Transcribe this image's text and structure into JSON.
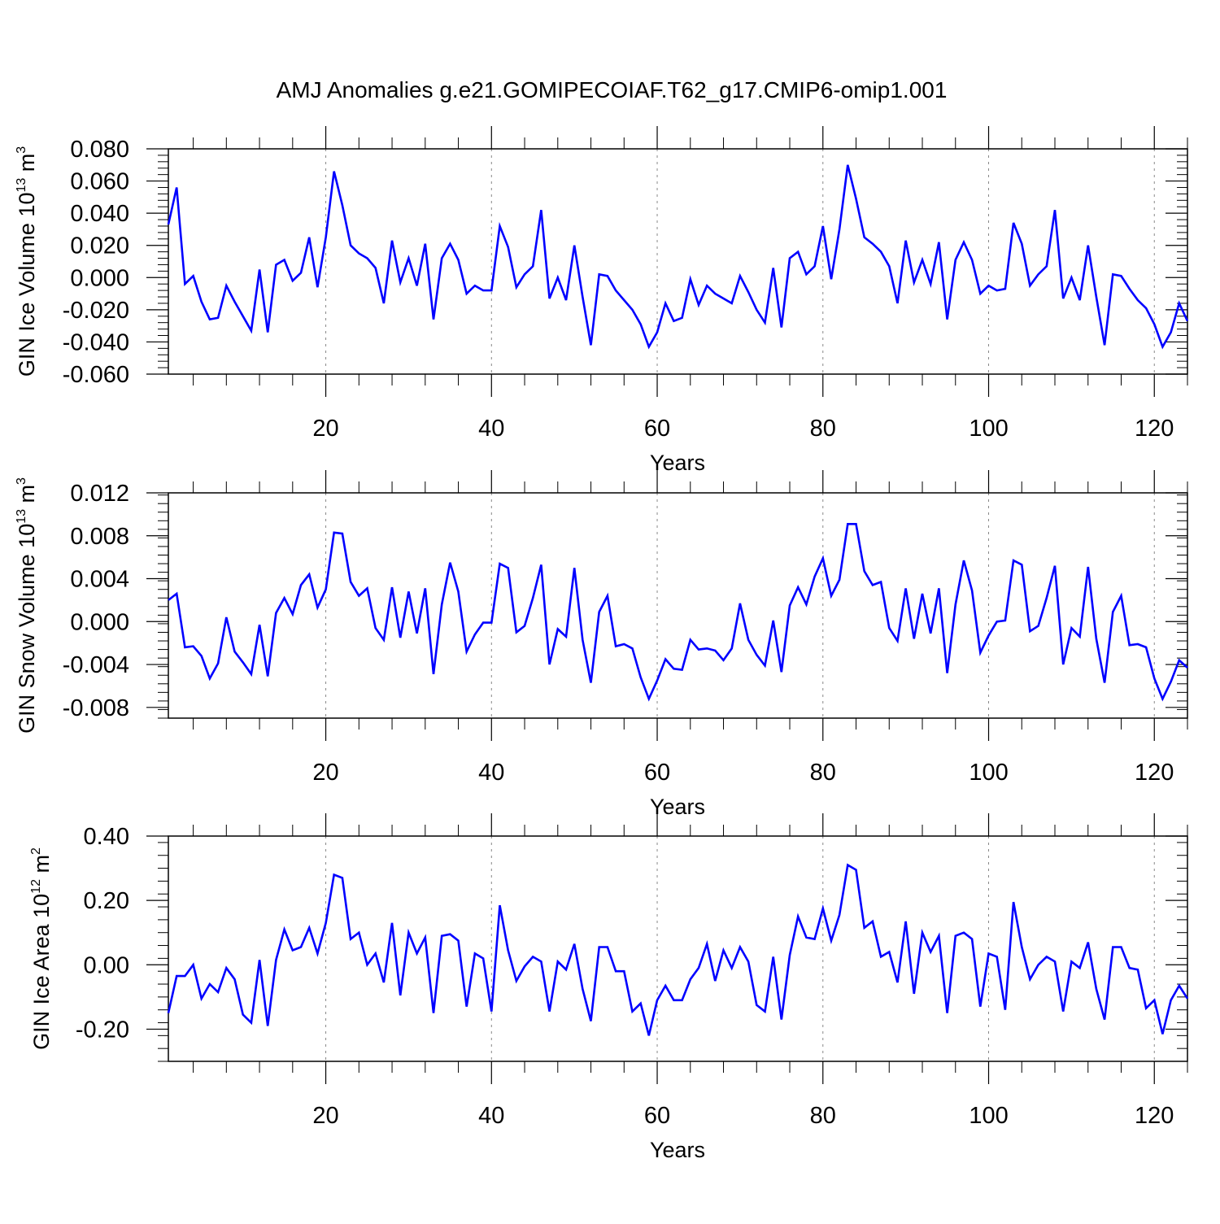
{
  "title": "AMJ Anomalies g.e21.GOMIPECOIAF.T62_g17.CMIP6-omip1.001",
  "colors": {
    "line": "#0000ff",
    "axis": "#000000",
    "grid": "#888888"
  },
  "chart_data": [
    {
      "type": "line",
      "ylabel": {
        "main": "GIN Ice Volume 10",
        "sup1": "13",
        "unit": " m",
        "sup2": "3"
      },
      "xlabel": "Years",
      "xlim": [
        1,
        124
      ],
      "ylim": [
        -0.06,
        0.08
      ],
      "xticks": [
        20,
        40,
        60,
        80,
        100,
        120
      ],
      "xtick_labels": [
        "20",
        "40",
        "60",
        "80",
        "100",
        "120"
      ],
      "yticks": [
        -0.06,
        -0.04,
        -0.02,
        0.0,
        0.02,
        0.04,
        0.06,
        0.08
      ],
      "ytick_labels": [
        "-0.060",
        "-0.040",
        "-0.020",
        "0.000",
        "0.020",
        "0.040",
        "0.060",
        "0.080"
      ],
      "series": [
        {
          "name": "GIN Ice Volume",
          "values": [
            0.033,
            0.056,
            -0.004,
            0.001,
            -0.015,
            -0.026,
            -0.025,
            -0.005,
            -0.015,
            -0.024,
            -0.033,
            0.005,
            -0.034,
            0.008,
            0.011,
            -0.002,
            0.003,
            0.025,
            -0.006,
            0.025,
            0.066,
            0.045,
            0.02,
            0.015,
            0.012,
            0.006,
            -0.016,
            0.023,
            -0.003,
            0.012,
            -0.005,
            0.021,
            -0.026,
            0.012,
            0.021,
            0.011,
            -0.01,
            -0.005,
            -0.008,
            -0.008,
            0.032,
            0.019,
            -0.006,
            0.002,
            0.007,
            0.042,
            -0.013,
            0.0,
            -0.014,
            0.02,
            -0.012,
            -0.042,
            0.002,
            0.001,
            -0.008,
            -0.014,
            -0.02,
            -0.029,
            -0.043,
            -0.034,
            -0.016,
            -0.027,
            -0.025,
            -0.001,
            -0.017,
            -0.005,
            -0.01,
            -0.013,
            -0.016,
            0.001,
            -0.009,
            -0.02,
            -0.028,
            0.006,
            -0.031,
            0.012,
            0.016,
            0.002,
            0.007,
            0.032,
            -0.001,
            0.03,
            0.07,
            0.049,
            0.025,
            0.021,
            0.016,
            0.007,
            -0.016,
            0.023,
            -0.003,
            0.011,
            -0.004,
            0.022,
            -0.026,
            0.011,
            0.022,
            0.011,
            -0.01,
            -0.005,
            -0.008,
            -0.007,
            0.034,
            0.021,
            -0.005,
            0.002,
            0.007,
            0.042,
            -0.013,
            0.0,
            -0.014,
            0.02,
            -0.012,
            -0.042,
            0.002,
            0.001,
            -0.007,
            -0.014,
            -0.019,
            -0.029,
            -0.043,
            -0.034,
            -0.016,
            -0.027
          ]
        }
      ]
    },
    {
      "type": "line",
      "ylabel": {
        "main": "GIN Snow Volume 10",
        "sup1": "13",
        "unit": " m",
        "sup2": "3"
      },
      "xlabel": "Years",
      "xlim": [
        1,
        124
      ],
      "ylim": [
        -0.009,
        0.012
      ],
      "xticks": [
        20,
        40,
        60,
        80,
        100,
        120
      ],
      "xtick_labels": [
        "20",
        "40",
        "60",
        "80",
        "100",
        "120"
      ],
      "yticks": [
        -0.008,
        -0.004,
        0.0,
        0.004,
        0.008,
        0.012
      ],
      "ytick_labels": [
        "-0.008",
        "-0.004",
        "0.000",
        "0.004",
        "0.008",
        "0.012"
      ],
      "series": [
        {
          "name": "GIN Snow Volume",
          "values": [
            0.002,
            0.0026,
            -0.0024,
            -0.0023,
            -0.0032,
            -0.0053,
            -0.0039,
            0.0004,
            -0.0028,
            -0.0038,
            -0.0049,
            -0.0003,
            -0.0051,
            0.0008,
            0.0022,
            0.0007,
            0.0034,
            0.0044,
            0.0013,
            0.003,
            0.0083,
            0.0082,
            0.0037,
            0.0024,
            0.0031,
            -0.0006,
            -0.0017,
            0.0032,
            -0.0015,
            0.0028,
            -0.0011,
            0.0031,
            -0.0049,
            0.0016,
            0.0055,
            0.0028,
            -0.0028,
            -0.0012,
            -0.0001,
            -0.0001,
            0.0054,
            0.005,
            -0.001,
            -0.0004,
            0.0022,
            0.0053,
            -0.004,
            -0.0007,
            -0.0014,
            0.005,
            -0.0017,
            -0.0057,
            0.0009,
            0.0024,
            -0.0023,
            -0.0021,
            -0.0025,
            -0.0052,
            -0.0072,
            -0.0055,
            -0.0035,
            -0.0044,
            -0.0045,
            -0.0017,
            -0.0026,
            -0.0025,
            -0.0027,
            -0.0036,
            -0.0025,
            0.0017,
            -0.0017,
            -0.0031,
            -0.0041,
            0.0001,
            -0.0047,
            0.0015,
            0.0032,
            0.0016,
            0.0042,
            0.0059,
            0.0024,
            0.0039,
            0.0091,
            0.0091,
            0.0047,
            0.0034,
            0.0037,
            -0.0006,
            -0.0018,
            0.0031,
            -0.0016,
            0.0026,
            -0.0011,
            0.0031,
            -0.0048,
            0.0016,
            0.0057,
            0.0029,
            -0.0029,
            -0.0013,
            0.0,
            0.0001,
            0.0057,
            0.0053,
            -0.0009,
            -0.0004,
            0.0022,
            0.0052,
            -0.004,
            -0.0006,
            -0.0014,
            0.0051,
            -0.0016,
            -0.0057,
            0.0009,
            0.0024,
            -0.0022,
            -0.0021,
            -0.0024,
            -0.0053,
            -0.0072,
            -0.0056,
            -0.0036,
            -0.0043
          ]
        }
      ]
    },
    {
      "type": "line",
      "ylabel": {
        "main": "GIN Ice Area 10",
        "sup1": "12",
        "unit": " m",
        "sup2": "2"
      },
      "xlabel": "Years",
      "xlim": [
        1,
        124
      ],
      "ylim": [
        -0.3,
        0.4
      ],
      "xticks": [
        20,
        40,
        60,
        80,
        100,
        120
      ],
      "xtick_labels": [
        "20",
        "40",
        "60",
        "80",
        "100",
        "120"
      ],
      "yticks": [
        -0.2,
        0.0,
        0.2,
        0.4
      ],
      "ytick_labels": [
        "-0.20",
        "0.00",
        "0.20",
        "0.40"
      ],
      "series": [
        {
          "name": "GIN Ice Area",
          "values": [
            -0.15,
            -0.035,
            -0.035,
            0.0,
            -0.105,
            -0.06,
            -0.085,
            -0.01,
            -0.045,
            -0.155,
            -0.18,
            0.015,
            -0.19,
            0.015,
            0.11,
            0.045,
            0.055,
            0.115,
            0.035,
            0.13,
            0.28,
            0.27,
            0.08,
            0.1,
            0.0,
            0.035,
            -0.055,
            0.13,
            -0.095,
            0.1,
            0.035,
            0.085,
            -0.15,
            0.09,
            0.095,
            0.075,
            -0.13,
            0.035,
            0.02,
            -0.145,
            0.185,
            0.045,
            -0.05,
            -0.005,
            0.025,
            0.01,
            -0.145,
            0.01,
            -0.015,
            0.065,
            -0.075,
            -0.175,
            0.055,
            0.055,
            -0.02,
            -0.02,
            -0.145,
            -0.12,
            -0.22,
            -0.11,
            -0.065,
            -0.11,
            -0.11,
            -0.045,
            -0.01,
            0.065,
            -0.05,
            0.045,
            -0.01,
            0.055,
            0.01,
            -0.125,
            -0.145,
            0.025,
            -0.17,
            0.03,
            0.15,
            0.085,
            0.08,
            0.175,
            0.075,
            0.155,
            0.31,
            0.295,
            0.115,
            0.135,
            0.025,
            0.04,
            -0.055,
            0.135,
            -0.09,
            0.1,
            0.04,
            0.09,
            -0.15,
            0.09,
            0.1,
            0.08,
            -0.13,
            0.035,
            0.025,
            -0.14,
            0.195,
            0.055,
            -0.045,
            0.0,
            0.025,
            0.01,
            -0.145,
            0.01,
            -0.01,
            0.07,
            -0.075,
            -0.17,
            0.055,
            0.055,
            -0.01,
            -0.015,
            -0.135,
            -0.11,
            -0.215,
            -0.11,
            -0.065,
            -0.105
          ]
        }
      ]
    }
  ]
}
